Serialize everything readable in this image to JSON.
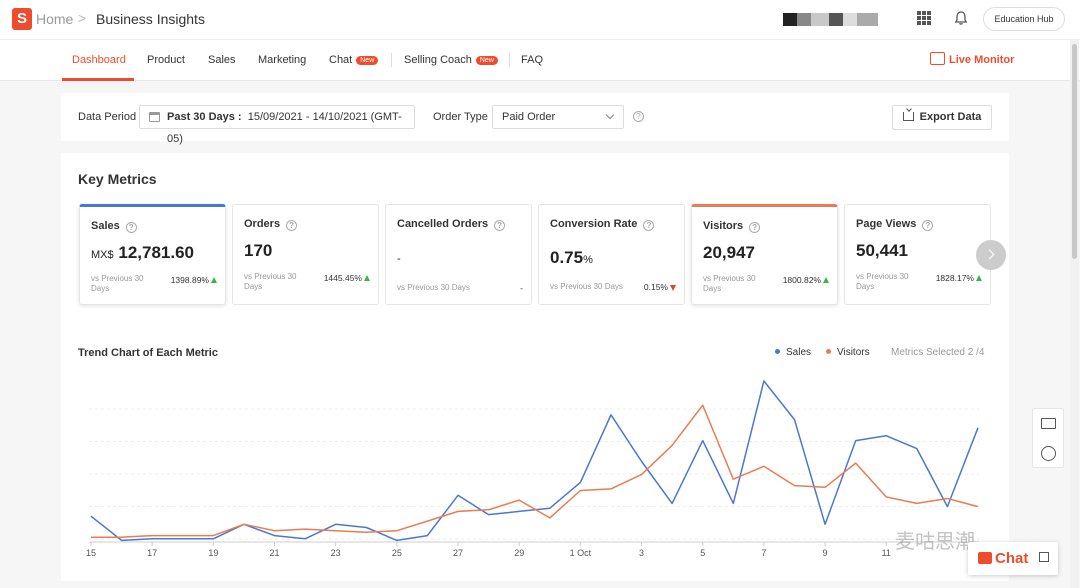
{
  "header": {
    "logo_letter": "S",
    "home": "Home",
    "page_title": "Business Insights",
    "education_hub": "Education Hub"
  },
  "tabs": [
    {
      "label": "Dashboard",
      "active": true
    },
    {
      "label": "Product"
    },
    {
      "label": "Sales"
    },
    {
      "label": "Marketing"
    },
    {
      "label": "Chat",
      "badge": "New"
    },
    {
      "label": "Selling Coach",
      "badge": "New"
    },
    {
      "label": "FAQ"
    }
  ],
  "live_monitor": "Live Monitor",
  "filters": {
    "data_period_label": "Data Period",
    "date_range_prefix": "Past 30 Days :",
    "date_range": "15/09/2021 - 14/10/2021 (GMT-05)",
    "order_type_label": "Order Type",
    "order_type_value": "Paid Order",
    "export_label": "Export Data"
  },
  "key_metrics": {
    "title": "Key Metrics",
    "cards": [
      {
        "name": "Sales",
        "unit": "MX$",
        "value": "12,781.60",
        "compare": "vs Previous 30 Days",
        "change": "1398.89%",
        "direction": "up",
        "selected": "blue"
      },
      {
        "name": "Orders",
        "unit": "",
        "value": "170",
        "compare": "vs Previous 30 Days",
        "change": "1445.45%",
        "direction": "up"
      },
      {
        "name": "Cancelled Orders",
        "unit": "",
        "value": "-",
        "compare": "vs Previous 30 Days",
        "change": "-",
        "direction": "none"
      },
      {
        "name": "Conversion Rate",
        "unit": "%",
        "value": "0.75",
        "compare": "vs Previous 30 Days",
        "change": "0.15%",
        "direction": "down"
      },
      {
        "name": "Visitors",
        "unit": "",
        "value": "20,947",
        "compare": "vs Previous 30 Days",
        "change": "1800.82%",
        "direction": "up",
        "selected": "orange"
      },
      {
        "name": "Page Views",
        "unit": "",
        "value": "50,441",
        "compare": "vs Previous 30 Days",
        "change": "1828.17%",
        "direction": "up"
      }
    ]
  },
  "trend": {
    "title": "Trend Chart of Each Metric",
    "metrics_selected": "Metrics Selected 2 /4"
  },
  "chat_label": "Chat",
  "watermark": "麦咕思潮",
  "colors": {
    "accent": "#ee4d2d",
    "sales": "#4a78d0",
    "visitors": "#e97c52"
  },
  "chart_data": {
    "type": "line",
    "title": "Trend Chart of Each Metric",
    "x_tick_labels": [
      "15",
      "17",
      "19",
      "21",
      "23",
      "25",
      "27",
      "29",
      "1 Oct",
      "3",
      "5",
      "7",
      "9",
      "11"
    ],
    "x": [
      "15",
      "16",
      "17",
      "18",
      "19",
      "20",
      "21",
      "22",
      "23",
      "24",
      "25",
      "26",
      "27",
      "28",
      "29",
      "30",
      "1 Oct",
      "2",
      "3",
      "4",
      "5",
      "6",
      "7",
      "8",
      "9",
      "10",
      "11",
      "12",
      "13",
      "14"
    ],
    "ylim": [
      0,
      100
    ],
    "grid": true,
    "legend": "top-right",
    "series": [
      {
        "name": "Sales",
        "color": "#4a78d0",
        "values": [
          16,
          1,
          2,
          2,
          2,
          11,
          4,
          2,
          11,
          9,
          1,
          4,
          29,
          17,
          19,
          21,
          37,
          79,
          50,
          24,
          63,
          24,
          100,
          76,
          11,
          63,
          66,
          58,
          22,
          71
        ]
      },
      {
        "name": "Visitors",
        "color": "#e97c52",
        "values": [
          3,
          3,
          4,
          4,
          4,
          11,
          7,
          8,
          7,
          6,
          7,
          13,
          19,
          20,
          26,
          15,
          32,
          33,
          42,
          60,
          85,
          39,
          47,
          35,
          34,
          49,
          28,
          24,
          27,
          22
        ]
      }
    ]
  }
}
